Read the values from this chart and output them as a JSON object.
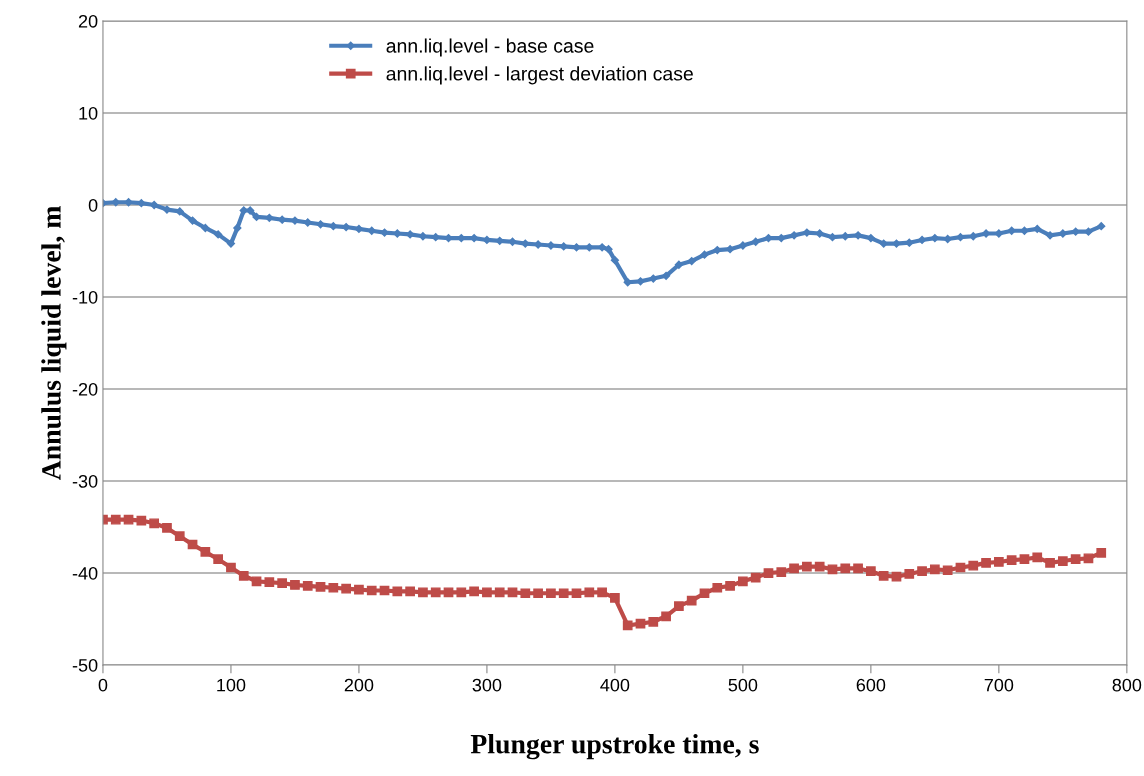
{
  "chart_data": {
    "type": "line",
    "xlabel": "Plunger upstroke time, s",
    "ylabel": "Annulus liquid level, m",
    "xlim": [
      0,
      800
    ],
    "xticks": [
      0,
      100,
      200,
      300,
      400,
      500,
      600,
      700,
      800
    ],
    "ylim": [
      -50,
      20
    ],
    "yticks": [
      -50,
      -40,
      -30,
      -20,
      -10,
      0,
      10,
      20
    ],
    "grid": "y",
    "legend": "top",
    "line_style": "solid",
    "series": [
      {
        "name": "ann.liq.level - base case",
        "color": "#4a7ebb",
        "marker": "diamond",
        "x": [
          0,
          10,
          20,
          30,
          40,
          50,
          60,
          70,
          80,
          90,
          100,
          105,
          110,
          115,
          120,
          130,
          140,
          150,
          160,
          170,
          180,
          190,
          200,
          210,
          220,
          230,
          240,
          250,
          260,
          270,
          280,
          290,
          300,
          310,
          320,
          330,
          340,
          350,
          360,
          370,
          380,
          390,
          395,
          400,
          410,
          420,
          430,
          440,
          450,
          460,
          470,
          480,
          490,
          500,
          510,
          520,
          530,
          540,
          550,
          560,
          570,
          580,
          590,
          600,
          610,
          620,
          630,
          640,
          650,
          660,
          670,
          680,
          690,
          700,
          710,
          720,
          730,
          740,
          750,
          760,
          770,
          780
        ],
        "values": [
          0.2,
          0.3,
          0.3,
          0.2,
          0,
          -0.5,
          -0.7,
          -1.7,
          -2.5,
          -3.2,
          -4.2,
          -2.5,
          -0.6,
          -0.6,
          -1.3,
          -1.4,
          -1.6,
          -1.7,
          -1.9,
          -2.1,
          -2.3,
          -2.4,
          -2.6,
          -2.8,
          -3.0,
          -3.1,
          -3.2,
          -3.4,
          -3.5,
          -3.6,
          -3.6,
          -3.6,
          -3.8,
          -3.9,
          -4.0,
          -4.2,
          -4.3,
          -4.4,
          -4.5,
          -4.6,
          -4.6,
          -4.6,
          -4.8,
          -6,
          -8.4,
          -8.3,
          -8.0,
          -7.7,
          -6.5,
          -6.1,
          -5.4,
          -4.9,
          -4.8,
          -4.4,
          -4.0,
          -3.6,
          -3.6,
          -3.3,
          -3.0,
          -3.1,
          -3.5,
          -3.4,
          -3.3,
          -3.6,
          -4.2,
          -4.2,
          -4.1,
          -3.8,
          -3.6,
          -3.7,
          -3.5,
          -3.4,
          -3.1,
          -3.1,
          -2.8,
          -2.8,
          -2.6,
          -3.3,
          -3.1,
          -2.9,
          -2.9,
          -2.3
        ]
      },
      {
        "name": "ann.liq.level - largest deviation case",
        "color": "#be4b48",
        "marker": "square",
        "x": [
          0,
          10,
          20,
          30,
          40,
          50,
          60,
          70,
          80,
          90,
          100,
          110,
          120,
          130,
          140,
          150,
          160,
          170,
          180,
          190,
          200,
          210,
          220,
          230,
          240,
          250,
          260,
          270,
          280,
          290,
          300,
          310,
          320,
          330,
          340,
          350,
          360,
          370,
          380,
          390,
          400,
          410,
          420,
          430,
          440,
          450,
          460,
          470,
          480,
          490,
          500,
          510,
          520,
          530,
          540,
          550,
          560,
          570,
          580,
          590,
          600,
          610,
          620,
          630,
          640,
          650,
          660,
          670,
          680,
          690,
          700,
          710,
          720,
          730,
          740,
          750,
          760,
          770,
          780
        ],
        "values": [
          -34.2,
          -34.2,
          -34.2,
          -34.3,
          -34.6,
          -35.1,
          -36,
          -36.9,
          -37.7,
          -38.5,
          -39.4,
          -40.3,
          -40.9,
          -41,
          -41.1,
          -41.3,
          -41.4,
          -41.5,
          -41.6,
          -41.7,
          -41.8,
          -41.9,
          -41.9,
          -42,
          -42,
          -42.1,
          -42.1,
          -42.1,
          -42.1,
          -42,
          -42.1,
          -42.1,
          -42.1,
          -42.2,
          -42.2,
          -42.2,
          -42.2,
          -42.2,
          -42.1,
          -42.1,
          -42.7,
          -45.7,
          -45.5,
          -45.3,
          -44.7,
          -43.6,
          -43,
          -42.2,
          -41.6,
          -41.4,
          -40.9,
          -40.5,
          -40,
          -39.9,
          -39.5,
          -39.3,
          -39.3,
          -39.6,
          -39.5,
          -39.5,
          -39.8,
          -40.3,
          -40.4,
          -40.1,
          -39.8,
          -39.6,
          -39.7,
          -39.4,
          -39.2,
          -38.9,
          -38.8,
          -38.6,
          -38.5,
          -38.3,
          -38.9,
          -38.7,
          -38.5,
          -38.4,
          -37.8
        ]
      }
    ]
  }
}
